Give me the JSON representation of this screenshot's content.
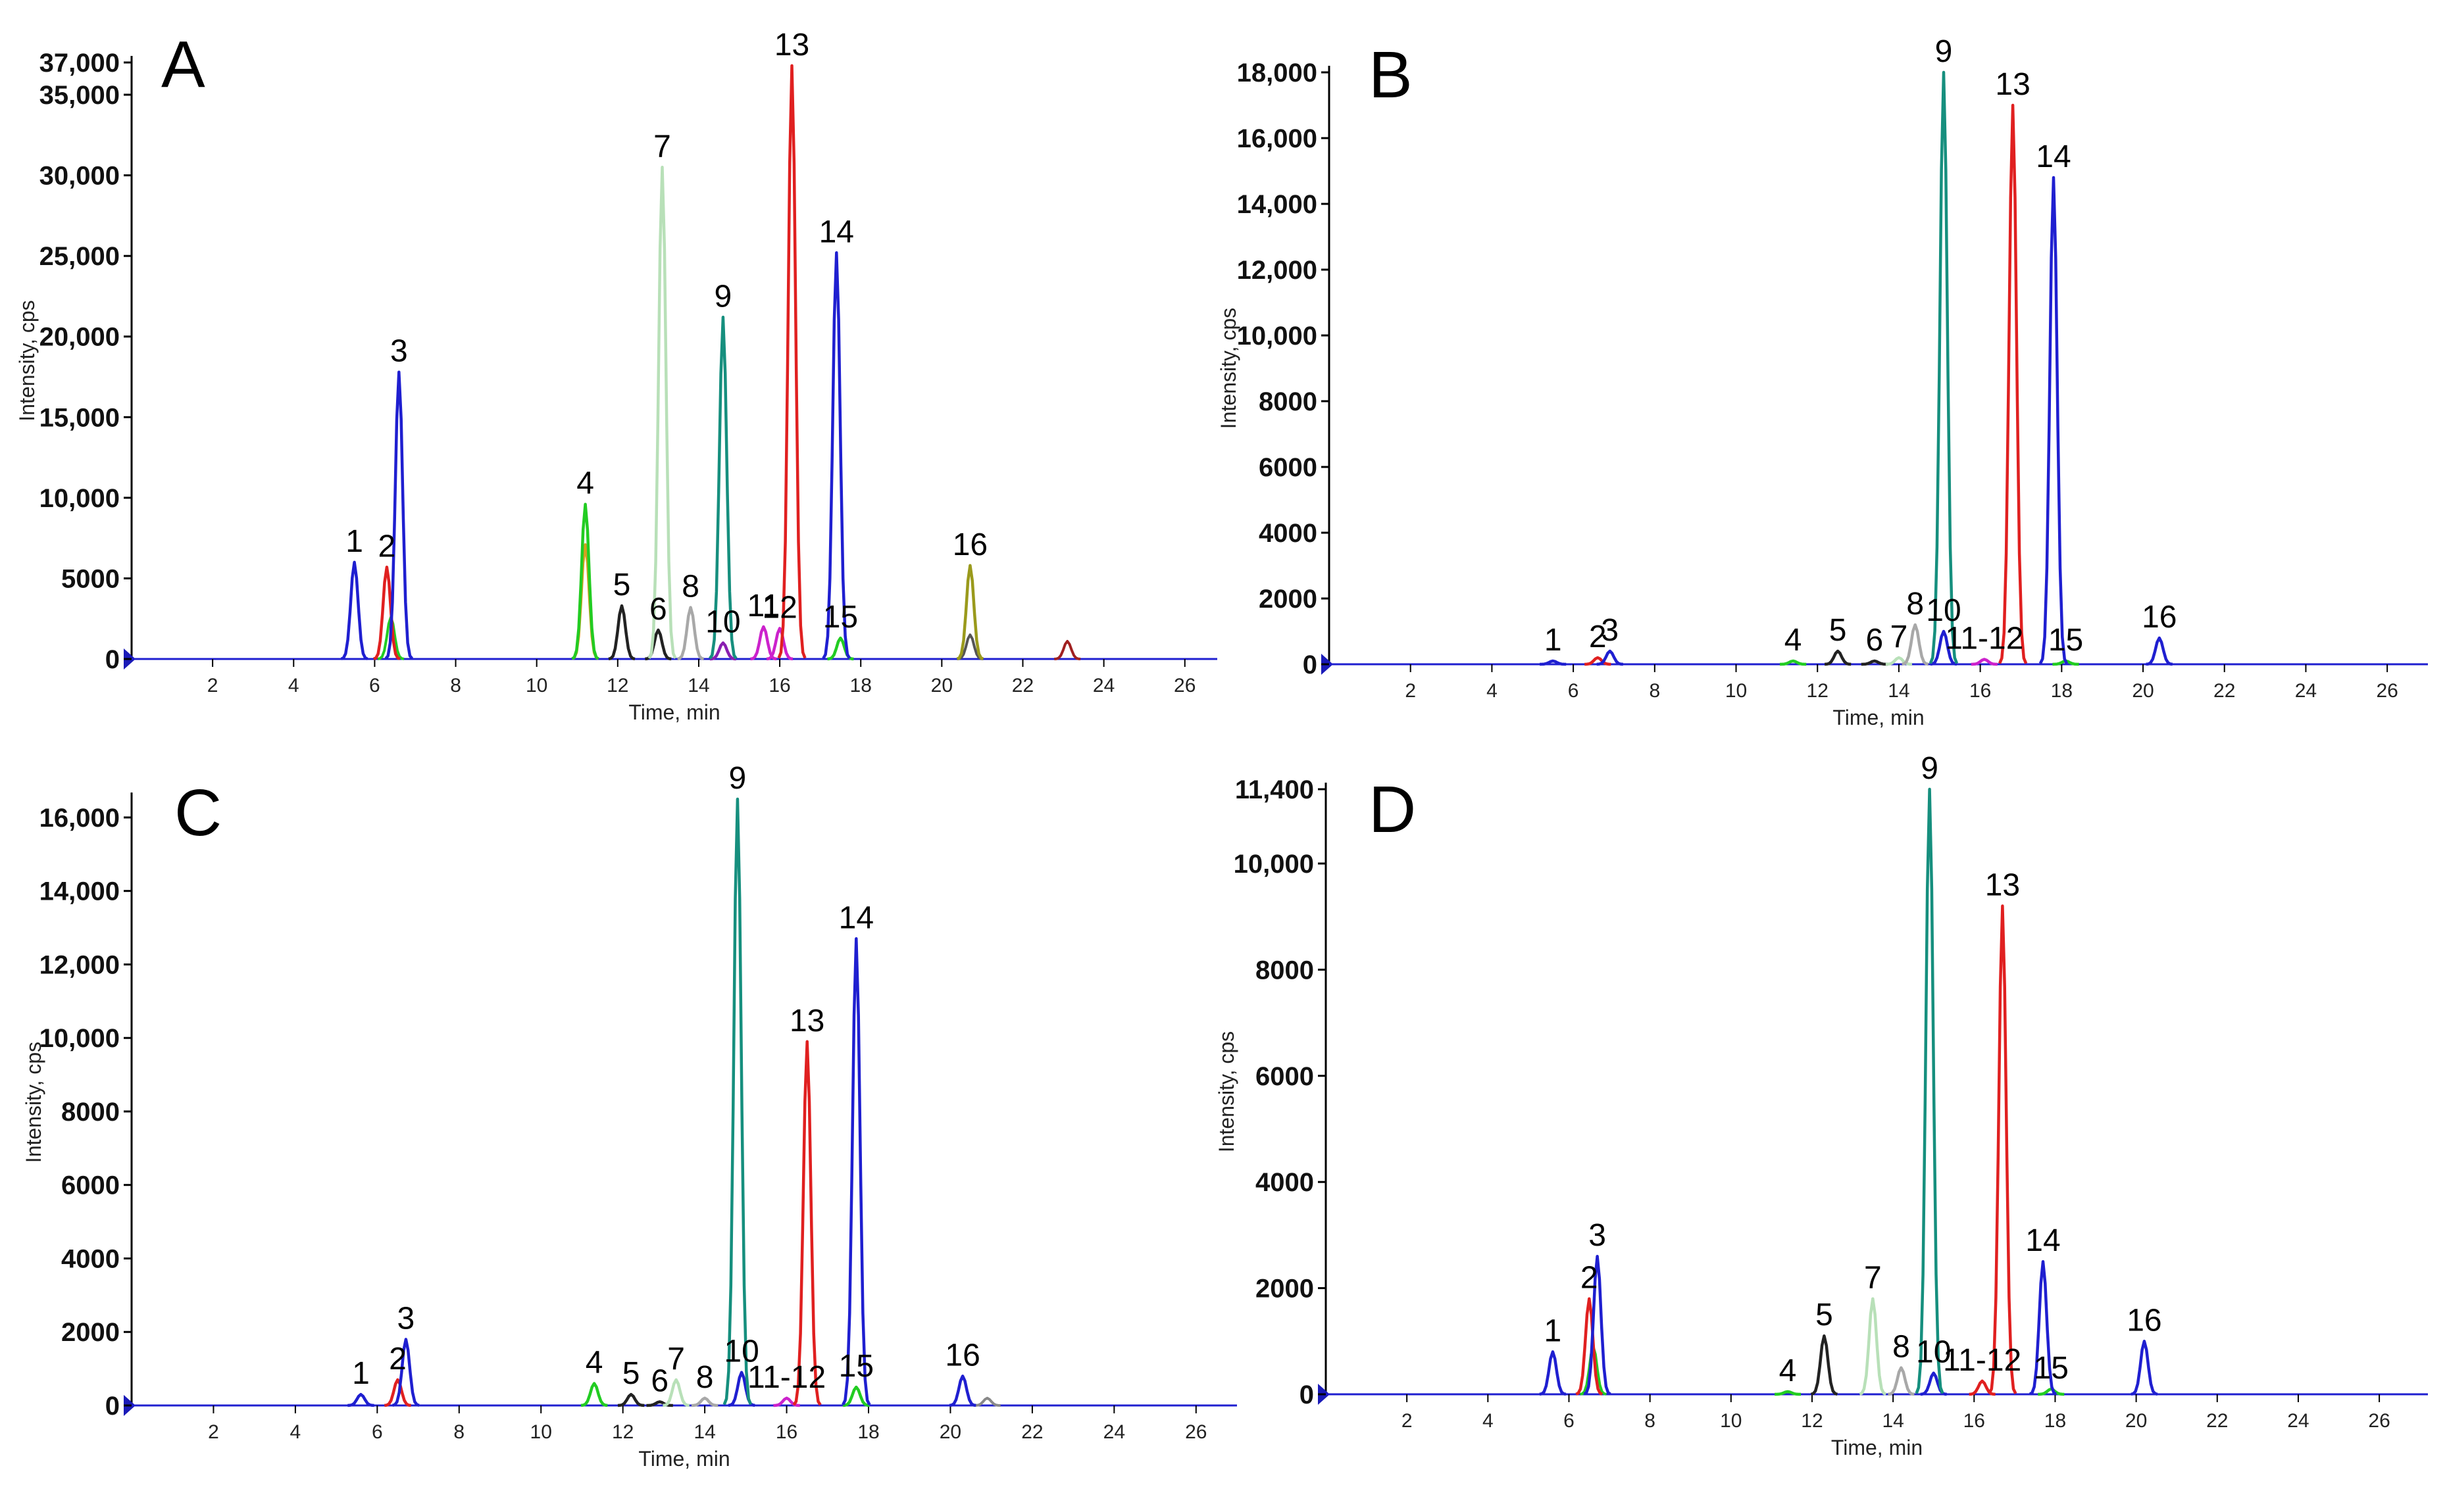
{
  "chart_data": [
    {
      "type": "line",
      "panel": "A",
      "xlabel": "Time, min",
      "ylabel": "Intensity, cps",
      "xlim": [
        0,
        26.8
      ],
      "ylim": [
        0,
        37000
      ],
      "x_ticks": [
        2,
        4,
        6,
        8,
        10,
        12,
        14,
        16,
        18,
        20,
        22,
        24,
        26
      ],
      "y_ticks": [
        0,
        5000,
        10000,
        15000,
        20000,
        25000,
        30000,
        35000,
        37000
      ],
      "y_tick_labels": [
        "0",
        "5000",
        "10,000",
        "15,000",
        "20,000",
        "25,000",
        "30,000",
        "35,000",
        "37,000"
      ],
      "peaks": [
        {
          "label": "1",
          "rt": 5.5,
          "intensity": 6000,
          "color": "#1f1fd0"
        },
        {
          "label": "2",
          "rt": 6.3,
          "intensity": 5700,
          "color": "#e02020"
        },
        {
          "label": "3",
          "rt": 6.6,
          "intensity": 17800,
          "color": "#1f1fd0"
        },
        {
          "label": "4",
          "rt": 11.2,
          "intensity": 9600,
          "color": "#22cc22"
        },
        {
          "label": "5",
          "rt": 12.1,
          "intensity": 3300,
          "color": "#222222"
        },
        {
          "label": "6",
          "rt": 13.0,
          "intensity": 1800,
          "color": "#222222"
        },
        {
          "label": "7",
          "rt": 13.1,
          "intensity": 30500,
          "color": "#b8e0b8"
        },
        {
          "label": "8",
          "rt": 13.8,
          "intensity": 3200,
          "color": "#a8a8a8"
        },
        {
          "label": "9",
          "rt": 14.6,
          "intensity": 21200,
          "color": "#168f7e"
        },
        {
          "label": "10",
          "rt": 14.6,
          "intensity": 1000,
          "color": "#8a1fb0"
        },
        {
          "label": "11",
          "rt": 15.6,
          "intensity": 2000,
          "color": "#cc22cc"
        },
        {
          "label": "12",
          "rt": 16.0,
          "intensity": 1900,
          "color": "#cc22cc"
        },
        {
          "label": "13",
          "rt": 16.3,
          "intensity": 36800,
          "color": "#e02020"
        },
        {
          "label": "14",
          "rt": 17.4,
          "intensity": 25200,
          "color": "#1f1fd0"
        },
        {
          "label": "15",
          "rt": 17.5,
          "intensity": 1300,
          "color": "#22cc22"
        },
        {
          "label": "16",
          "rt": 20.7,
          "intensity": 5800,
          "color": "#9a9a1c"
        }
      ],
      "extra_traces": [
        {
          "rt": 11.2,
          "intensity": 7100,
          "color": "#d4a020"
        },
        {
          "rt": 6.4,
          "intensity": 2600,
          "color": "#22cc22"
        },
        {
          "rt": 20.7,
          "intensity": 1500,
          "color": "#555555"
        },
        {
          "rt": 23.1,
          "intensity": 1100,
          "color": "#a02020"
        }
      ]
    },
    {
      "type": "line",
      "panel": "B",
      "xlabel": "Time, min",
      "ylabel": "Intensity, cps",
      "xlim": [
        0,
        27
      ],
      "ylim": [
        0,
        18000
      ],
      "x_ticks": [
        2,
        4,
        6,
        8,
        10,
        12,
        14,
        16,
        18,
        20,
        22,
        24,
        26
      ],
      "y_ticks": [
        0,
        2000,
        4000,
        6000,
        8000,
        10000,
        12000,
        14000,
        16000,
        18000
      ],
      "y_tick_labels": [
        "0",
        "2000",
        "4000",
        "6000",
        "8000",
        "10,000",
        "12,000",
        "14,000",
        "16,000",
        "18,000"
      ],
      "peaks": [
        {
          "label": "1",
          "rt": 5.5,
          "intensity": 100,
          "color": "#1f1fd0"
        },
        {
          "label": "2",
          "rt": 6.6,
          "intensity": 200,
          "color": "#e02020"
        },
        {
          "label": "3",
          "rt": 6.9,
          "intensity": 400,
          "color": "#1f1fd0"
        },
        {
          "label": "4",
          "rt": 11.4,
          "intensity": 100,
          "color": "#22cc22"
        },
        {
          "label": "5",
          "rt": 12.5,
          "intensity": 400,
          "color": "#222222"
        },
        {
          "label": "6",
          "rt": 13.4,
          "intensity": 100,
          "color": "#222222"
        },
        {
          "label": "7",
          "rt": 14.0,
          "intensity": 200,
          "color": "#b8e0b8"
        },
        {
          "label": "8",
          "rt": 14.4,
          "intensity": 1200,
          "color": "#a8a8a8"
        },
        {
          "label": "9",
          "rt": 15.1,
          "intensity": 18000,
          "color": "#168f7e"
        },
        {
          "label": "10",
          "rt": 15.1,
          "intensity": 1000,
          "color": "#1f1fd0"
        },
        {
          "label": "11-12",
          "rt": 16.1,
          "intensity": 150,
          "color": "#cc22cc"
        },
        {
          "label": "13",
          "rt": 16.8,
          "intensity": 17000,
          "color": "#e02020"
        },
        {
          "label": "14",
          "rt": 17.8,
          "intensity": 14800,
          "color": "#1f1fd0"
        },
        {
          "label": "15",
          "rt": 18.1,
          "intensity": 100,
          "color": "#22cc22"
        },
        {
          "label": "16",
          "rt": 20.4,
          "intensity": 800,
          "color": "#1f1fd0"
        }
      ],
      "extra_traces": []
    },
    {
      "type": "line",
      "panel": "C",
      "xlabel": "Time, min",
      "ylabel": "Intensity, cps",
      "xlim": [
        0,
        27
      ],
      "ylim": [
        0,
        16500
      ],
      "x_ticks": [
        2,
        4,
        6,
        8,
        10,
        12,
        14,
        16,
        18,
        20,
        22,
        24,
        26
      ],
      "y_ticks": [
        0,
        2000,
        4000,
        6000,
        8000,
        10000,
        12000,
        14000,
        16000
      ],
      "y_tick_labels": [
        "0",
        "2000",
        "4000",
        "6000",
        "8000",
        "10,000",
        "12,000",
        "14,000",
        "16,000"
      ],
      "peaks": [
        {
          "label": "1",
          "rt": 5.6,
          "intensity": 300,
          "color": "#1f1fd0"
        },
        {
          "label": "2",
          "rt": 6.5,
          "intensity": 700,
          "color": "#e02020"
        },
        {
          "label": "3",
          "rt": 6.7,
          "intensity": 1800,
          "color": "#1f1fd0"
        },
        {
          "label": "4",
          "rt": 11.3,
          "intensity": 600,
          "color": "#22cc22"
        },
        {
          "label": "5",
          "rt": 12.2,
          "intensity": 300,
          "color": "#222222"
        },
        {
          "label": "6",
          "rt": 12.9,
          "intensity": 100,
          "color": "#222222"
        },
        {
          "label": "7",
          "rt": 13.3,
          "intensity": 700,
          "color": "#b8e0b8"
        },
        {
          "label": "8",
          "rt": 14.0,
          "intensity": 200,
          "color": "#a8a8a8"
        },
        {
          "label": "9",
          "rt": 14.8,
          "intensity": 16500,
          "color": "#168f7e"
        },
        {
          "label": "10",
          "rt": 14.9,
          "intensity": 900,
          "color": "#1f1fd0"
        },
        {
          "label": "11-12",
          "rt": 16.0,
          "intensity": 200,
          "color": "#cc22cc"
        },
        {
          "label": "13",
          "rt": 16.5,
          "intensity": 9900,
          "color": "#e02020"
        },
        {
          "label": "14",
          "rt": 17.7,
          "intensity": 12700,
          "color": "#1f1fd0"
        },
        {
          "label": "15",
          "rt": 17.7,
          "intensity": 500,
          "color": "#22cc22"
        },
        {
          "label": "16",
          "rt": 20.3,
          "intensity": 800,
          "color": "#1f1fd0"
        }
      ],
      "extra_traces": [
        {
          "rt": 20.9,
          "intensity": 200,
          "color": "#888888"
        }
      ]
    },
    {
      "type": "line",
      "panel": "D",
      "xlabel": "Time, min",
      "ylabel": "Intensity, cps",
      "xlim": [
        0,
        27.2
      ],
      "ylim": [
        0,
        11400
      ],
      "x_ticks": [
        2,
        4,
        6,
        8,
        10,
        12,
        14,
        16,
        18,
        20,
        22,
        24,
        26
      ],
      "y_ticks": [
        0,
        2000,
        4000,
        6000,
        8000,
        10000,
        11400
      ],
      "y_tick_labels": [
        "0",
        "2000",
        "4000",
        "6000",
        "8000",
        "10,000",
        "11,400"
      ],
      "peaks": [
        {
          "label": "1",
          "rt": 5.6,
          "intensity": 800,
          "color": "#1f1fd0"
        },
        {
          "label": "2",
          "rt": 6.5,
          "intensity": 1800,
          "color": "#e02020"
        },
        {
          "label": "3",
          "rt": 6.7,
          "intensity": 2600,
          "color": "#1f1fd0"
        },
        {
          "label": "4",
          "rt": 11.4,
          "intensity": 50,
          "color": "#22cc22"
        },
        {
          "label": "5",
          "rt": 12.3,
          "intensity": 1100,
          "color": "#222222"
        },
        {
          "label": "7",
          "rt": 13.5,
          "intensity": 1800,
          "color": "#b8e0b8"
        },
        {
          "label": "8",
          "rt": 14.2,
          "intensity": 500,
          "color": "#a8a8a8"
        },
        {
          "label": "9",
          "rt": 14.9,
          "intensity": 11400,
          "color": "#168f7e"
        },
        {
          "label": "10",
          "rt": 15.0,
          "intensity": 400,
          "color": "#1f1fd0"
        },
        {
          "label": "11-12",
          "rt": 16.2,
          "intensity": 250,
          "color": "#e02020"
        },
        {
          "label": "13",
          "rt": 16.7,
          "intensity": 9200,
          "color": "#e02020"
        },
        {
          "label": "14",
          "rt": 17.7,
          "intensity": 2500,
          "color": "#1f1fd0"
        },
        {
          "label": "15",
          "rt": 17.9,
          "intensity": 100,
          "color": "#22cc22"
        },
        {
          "label": "16",
          "rt": 20.2,
          "intensity": 1000,
          "color": "#1f1fd0"
        }
      ],
      "extra_traces": [
        {
          "rt": 6.6,
          "intensity": 900,
          "color": "#22cc22"
        }
      ]
    }
  ]
}
